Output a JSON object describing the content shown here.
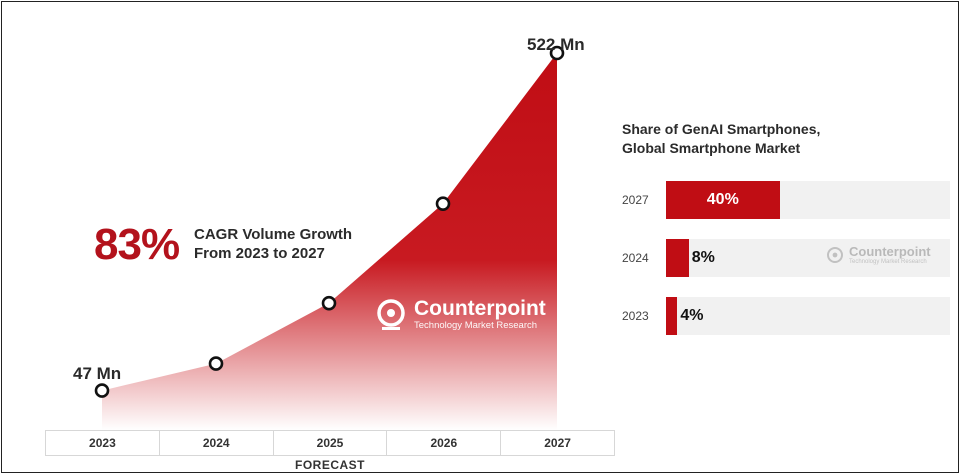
{
  "chart_data": [
    {
      "type": "area",
      "categories": [
        "2023",
        "2024",
        "2025",
        "2026",
        "2027"
      ],
      "values": [
        47,
        85,
        170,
        310,
        522
      ],
      "point_labels": [
        "47 Mn",
        "",
        "",
        "",
        "522 Mn"
      ],
      "title": "",
      "xlabel": "FORECAST",
      "ylabel": "",
      "ylim": [
        0,
        560
      ],
      "colors": {
        "fill_top": "#c00d14",
        "fill_bottom": "#ffffff",
        "marker": "#111111"
      },
      "annotation": {
        "value": "83%",
        "line1": "CAGR Volume Growth",
        "line2": "From 2023 to 2027"
      },
      "watermark": {
        "name": "Counterpoint",
        "tagline": "Technology Market Research"
      }
    },
    {
      "type": "bar",
      "orientation": "horizontal",
      "title_line1": "Share of GenAI Smartphones,",
      "title_line2": "Global Smartphone Market",
      "categories": [
        "2027",
        "2024",
        "2023"
      ],
      "values": [
        40,
        8,
        4
      ],
      "value_labels": [
        "40%",
        "8%",
        "4%"
      ],
      "xlim": [
        0,
        100
      ],
      "colors": {
        "bar": "#c00d14",
        "track": "#f1f1f1"
      },
      "watermark": {
        "name": "Counterpoint",
        "tagline": "Technology Market Research"
      }
    }
  ]
}
